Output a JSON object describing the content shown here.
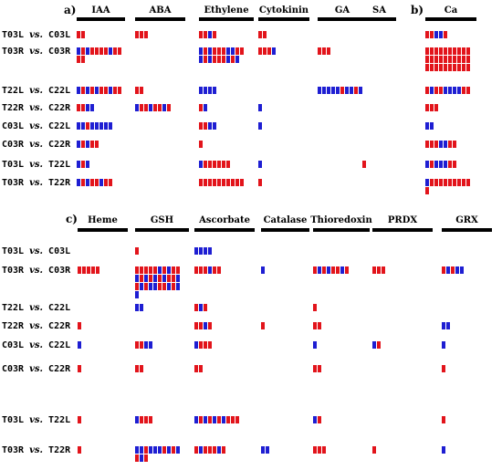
{
  "colors": {
    "up": "#e2141b",
    "down": "#1e1ed2",
    "bar": "#000000"
  },
  "panels": [
    {
      "id": "ab",
      "labels": [
        {
          "text": "a)",
          "before_column": 0
        },
        {
          "text": "b)",
          "before_column": 6
        }
      ],
      "columns": [
        {
          "name": "IAA"
        },
        {
          "name": "ABA"
        },
        {
          "name": "Ethylene"
        },
        {
          "name": "Cytokinin"
        },
        {
          "name": "GA"
        },
        {
          "name": "SA"
        },
        {
          "name": "Ca"
        }
      ],
      "rows": [
        {
          "a": "T03L",
          "vs": "vs.",
          "b": "C03L",
          "cells": [
            "RR",
            "RRR",
            "RRBR",
            "RR",
            "",
            "",
            "RRBBR"
          ]
        },
        {
          "a": "T03R",
          "vs": "vs.",
          "b": "C03R",
          "cells": [
            "BRBRRRRBRR|RR",
            "",
            "BRBRRRBBRR|BRBRRRBRB",
            "RRRB",
            "RRR",
            "",
            "RRRRRRRRRR|RRRRRRRRRR|RRRRRRRRRR"
          ]
        },
        {
          "a": "T22L",
          "vs": "vs.",
          "b": "C22L",
          "cells": [
            "BRBRBRRBRR",
            "RR",
            "BBBB",
            "",
            "BBBBBRBBRB",
            "",
            "RBRRBBBBRR"
          ]
        },
        {
          "a": "T22R",
          "vs": "vs.",
          "b": "C22R",
          "cells": [
            "RRBB",
            "BRRBRRBR",
            "RB",
            "B",
            "",
            "",
            "RRR"
          ]
        },
        {
          "a": "C03L",
          "vs": "vs.",
          "b": "C22L",
          "cells": [
            "BBRBBBBB",
            "",
            "RRBB",
            "B",
            "",
            "",
            "BB"
          ]
        },
        {
          "a": "C03R",
          "vs": "vs.",
          "b": "C22R",
          "cells": [
            "BRBRR",
            "",
            "R",
            "",
            "",
            "",
            "RRRBBRR"
          ]
        },
        {
          "a": "T03L",
          "vs": "vs.",
          "b": "T22L",
          "cells": [
            "BRB",
            "",
            "BRRRRRR",
            "B",
            "",
            "R",
            "BRBBBRR"
          ]
        },
        {
          "a": "T03R",
          "vs": "vs.",
          "b": "T22R",
          "cells": [
            "BRBRRBRR",
            "",
            "RRRRRRRRRR",
            "R",
            "",
            "",
            "BRRRRRRRRR|R"
          ]
        }
      ]
    },
    {
      "id": "c",
      "labels": [
        {
          "text": "c)",
          "before_column": 0
        }
      ],
      "columns": [
        {
          "name": "Heme"
        },
        {
          "name": "GSH"
        },
        {
          "name": "Ascorbate"
        },
        {
          "name": "Catalase"
        },
        {
          "name": "Thioredoxin"
        },
        {
          "name": "PRDX"
        },
        {
          "name": "GRX"
        }
      ],
      "rows": [
        {
          "a": "T03L",
          "vs": "vs.",
          "b": "C03L",
          "cells": [
            "",
            "R",
            "BBBB",
            "",
            "",
            "",
            ""
          ]
        },
        {
          "a": "T03R",
          "vs": "vs.",
          "b": "C03R",
          "cells": [
            "RRRRR",
            "RRRRRBRBRR|BRBRBRBRRB|RBRBBRRBRB|B",
            "RRRBRR",
            "B",
            "RBRBRRBR",
            "RRR",
            "RBRBB"
          ]
        },
        {
          "a": "T22L",
          "vs": "vs.",
          "b": "C22L",
          "cells": [
            "",
            "BB",
            "RBR",
            "",
            "R",
            "",
            ""
          ]
        },
        {
          "a": "T22R",
          "vs": "vs.",
          "b": "C22R",
          "cells": [
            "R",
            "",
            "RRBR",
            "R",
            "RR",
            "",
            "BB"
          ]
        },
        {
          "a": "C03L",
          "vs": "vs.",
          "b": "C22L",
          "cells": [
            "B",
            "RRBB",
            "BRRR",
            "",
            "B",
            "BR",
            "B"
          ]
        },
        {
          "a": "C03R",
          "vs": "vs.",
          "b": "C22R",
          "cells": [
            "R",
            "RR",
            "RR",
            "",
            "RR",
            "",
            "R"
          ]
        },
        {
          "a": "T03L",
          "vs": "vs.",
          "b": "T22L",
          "cells": [
            "R",
            "BRRR",
            "BRBRBRBRRR",
            "",
            "BR",
            "",
            "R"
          ]
        },
        {
          "a": "T03R",
          "vs": "vs.",
          "b": "T22R",
          "cells": [
            "R",
            "BBRBBBRBRB|RBR",
            "RBRRRBR",
            "BB",
            "RRR",
            "R",
            "B"
          ]
        }
      ]
    }
  ]
}
